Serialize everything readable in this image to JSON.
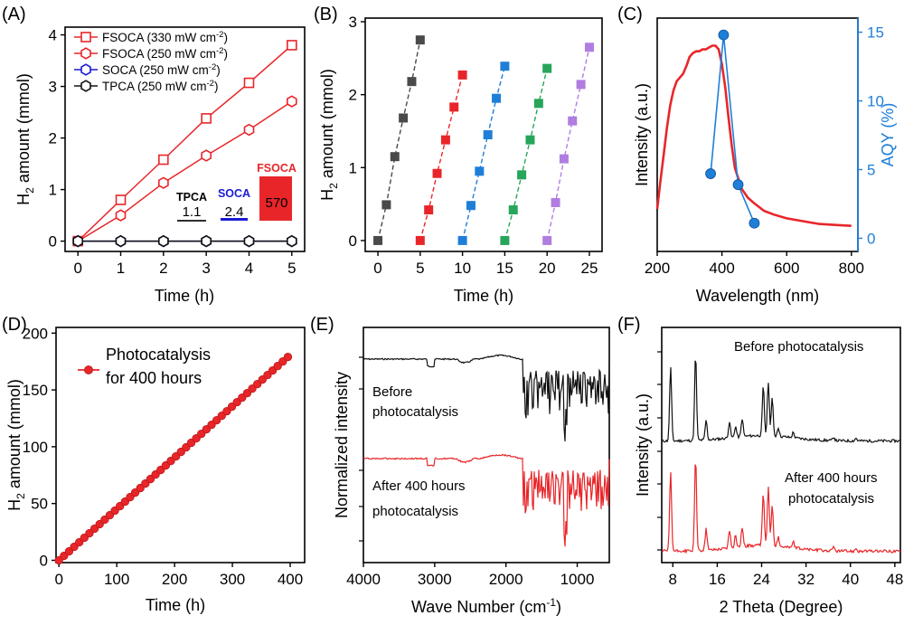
{
  "panels": {
    "A": {
      "letter": "(A)"
    },
    "B": {
      "letter": "(B)"
    },
    "C": {
      "letter": "(C)"
    },
    "D": {
      "letter": "(D)"
    },
    "E": {
      "letter": "(E)"
    },
    "F": {
      "letter": "(F)"
    }
  },
  "colors": {
    "red": "#e8262a",
    "blue": "#1a1ad6",
    "black": "#111111",
    "sky": "#1f7fd8",
    "green": "#27a55a",
    "purple": "#b07de0",
    "gray": "#4a4a4a"
  },
  "chart_data": [
    {
      "panel": "A",
      "type": "line",
      "xlabel": "Time (h)",
      "ylabel_main": "H",
      "ylabel_sub": "2",
      "ylabel_rest": " amount (mmol)",
      "xlim": [
        -0.3,
        5.3
      ],
      "ylim": [
        -0.2,
        4.15
      ],
      "xticks": [
        0,
        1,
        2,
        3,
        4,
        5
      ],
      "yticks": [
        0,
        1,
        2,
        3,
        4
      ],
      "series": [
        {
          "name": "FSOCA (330 mW cm",
          "sup": "-2",
          "close": ")",
          "marker": "square",
          "color": "#e8262a",
          "x": [
            0,
            1,
            2,
            3,
            4,
            5
          ],
          "y": [
            0,
            0.8,
            1.58,
            2.38,
            3.07,
            3.8
          ]
        },
        {
          "name": "FSOCA (250 mW cm",
          "sup": "-2",
          "close": ")",
          "marker": "hexagon",
          "color": "#e8262a",
          "x": [
            0,
            1,
            2,
            3,
            4,
            5
          ],
          "y": [
            0,
            0.5,
            1.13,
            1.66,
            2.16,
            2.71
          ]
        },
        {
          "name": "SOCA (250 mW cm",
          "sup": "-2",
          "close": ")",
          "marker": "hexagon",
          "color": "#1a1ad6",
          "x": [
            0,
            1,
            2,
            3,
            4,
            5
          ],
          "y": [
            0,
            0,
            0,
            0,
            0,
            0
          ]
        },
        {
          "name": "TPCA (250 mW cm",
          "sup": "-2",
          "close": ")",
          "marker": "hexagon",
          "color": "#111111",
          "x": [
            0,
            1,
            2,
            3,
            4,
            5
          ],
          "y": [
            0,
            0,
            0,
            0,
            0,
            0
          ]
        }
      ],
      "inset": {
        "categories": [
          "TPCA",
          "SOCA",
          "FSOCA"
        ],
        "values": [
          "1.1",
          "2.4",
          "570"
        ],
        "colors": [
          "#111111",
          "#1a1ad6",
          "#e8262a"
        ]
      }
    },
    {
      "panel": "B",
      "type": "line",
      "xlabel": "Time (h)",
      "ylabel_main": "H",
      "ylabel_sub": "2",
      "ylabel_rest": " amount (mmol)",
      "xlim": [
        -1.5,
        26.5
      ],
      "ylim": [
        -0.15,
        3.05
      ],
      "xticks": [
        0,
        5,
        10,
        15,
        20,
        25
      ],
      "yticks": [
        0,
        1,
        2,
        3
      ],
      "series": [
        {
          "color": "#4a4a4a",
          "x": [
            0,
            1,
            2,
            3,
            4,
            5
          ],
          "y": [
            0,
            0.49,
            1.15,
            1.68,
            2.18,
            2.75
          ]
        },
        {
          "color": "#e8262a",
          "x": [
            5,
            6,
            7,
            8,
            9,
            10
          ],
          "y": [
            0,
            0.42,
            0.92,
            1.38,
            1.83,
            2.27
          ]
        },
        {
          "color": "#1f7fd8",
          "x": [
            10,
            11,
            12,
            13,
            14,
            15
          ],
          "y": [
            0,
            0.48,
            0.95,
            1.45,
            1.95,
            2.39
          ]
        },
        {
          "color": "#27a55a",
          "x": [
            15,
            16,
            17,
            18,
            19,
            20
          ],
          "y": [
            0,
            0.42,
            0.9,
            1.38,
            1.88,
            2.36
          ]
        },
        {
          "color": "#b07de0",
          "x": [
            20,
            21,
            22,
            23,
            24,
            25
          ],
          "y": [
            0,
            0.52,
            1.12,
            1.64,
            2.14,
            2.65
          ]
        }
      ]
    },
    {
      "panel": "C",
      "type": "line",
      "xlabel": "Wavelength (nm)",
      "ylabel": "Intensity (a.u.)",
      "ylabel_right": "AQY (%)",
      "xlim": [
        200,
        820
      ],
      "ylim": [
        0,
        1
      ],
      "xticks": [
        200,
        400,
        600,
        800
      ],
      "y2lim": [
        -0.3,
        15.5
      ],
      "y2ticks": [
        0,
        5,
        10,
        15
      ],
      "spectrum": {
        "x": [
          200,
          210,
          220,
          230,
          240,
          250,
          260,
          270,
          280,
          290,
          300,
          310,
          320,
          330,
          340,
          350,
          360,
          370,
          380,
          390,
          400,
          410,
          420,
          430,
          440,
          460,
          480,
          500,
          530,
          560,
          600,
          650,
          700,
          750,
          800
        ],
        "y": [
          0.13,
          0.28,
          0.42,
          0.56,
          0.68,
          0.76,
          0.81,
          0.83,
          0.85,
          0.89,
          0.94,
          0.96,
          0.97,
          0.97,
          0.98,
          0.98,
          0.99,
          1.0,
          1.0,
          0.98,
          0.9,
          0.78,
          0.62,
          0.47,
          0.35,
          0.24,
          0.19,
          0.16,
          0.12,
          0.1,
          0.08,
          0.065,
          0.05,
          0.045,
          0.04
        ]
      },
      "aqy": {
        "x": [
          365,
          405,
          450,
          500
        ],
        "y": [
          4.7,
          14.8,
          3.9,
          1.1
        ],
        "color": "#1f7fd8"
      }
    },
    {
      "panel": "D",
      "type": "line",
      "xlabel": "Time (h)",
      "ylabel_main": "H",
      "ylabel_sub": "2",
      "ylabel_rest": " amount (mmol)",
      "xlim": [
        -5,
        425
      ],
      "ylim": [
        -2,
        205
      ],
      "xticks": [
        0,
        100,
        200,
        300,
        400
      ],
      "yticks": [
        0,
        50,
        100,
        150,
        200
      ],
      "series": [
        {
          "name": "Photocatalysis",
          "name2": "for 400 hours",
          "color": "#e8262a",
          "x_start": 0,
          "x_end": 396,
          "points": 46,
          "y_start": 0,
          "y_end": 179
        }
      ]
    },
    {
      "panel": "E",
      "type": "line",
      "xlabel": "Wave Number (cm",
      "xlabel_sup": "-1",
      "xlabel_close": ")",
      "ylabel": "Normalized intensity",
      "xlim": [
        4000,
        550
      ],
      "xticks": [
        4000,
        3000,
        2000,
        1000
      ],
      "labels": {
        "before1": "Before",
        "before2": "photocatalysis",
        "after1": "After 400 hours",
        "after2": "photocatalysis"
      }
    },
    {
      "panel": "F",
      "type": "line",
      "xlabel": "2 Theta (Degree)",
      "ylabel": "Intensity (a.u.)",
      "xlim": [
        6,
        49
      ],
      "xticks": [
        8,
        16,
        24,
        32,
        40,
        48
      ],
      "labels": {
        "before": "Before photocatalysis",
        "after1": "After 400 hours",
        "after2": "photocatalysis"
      }
    }
  ]
}
